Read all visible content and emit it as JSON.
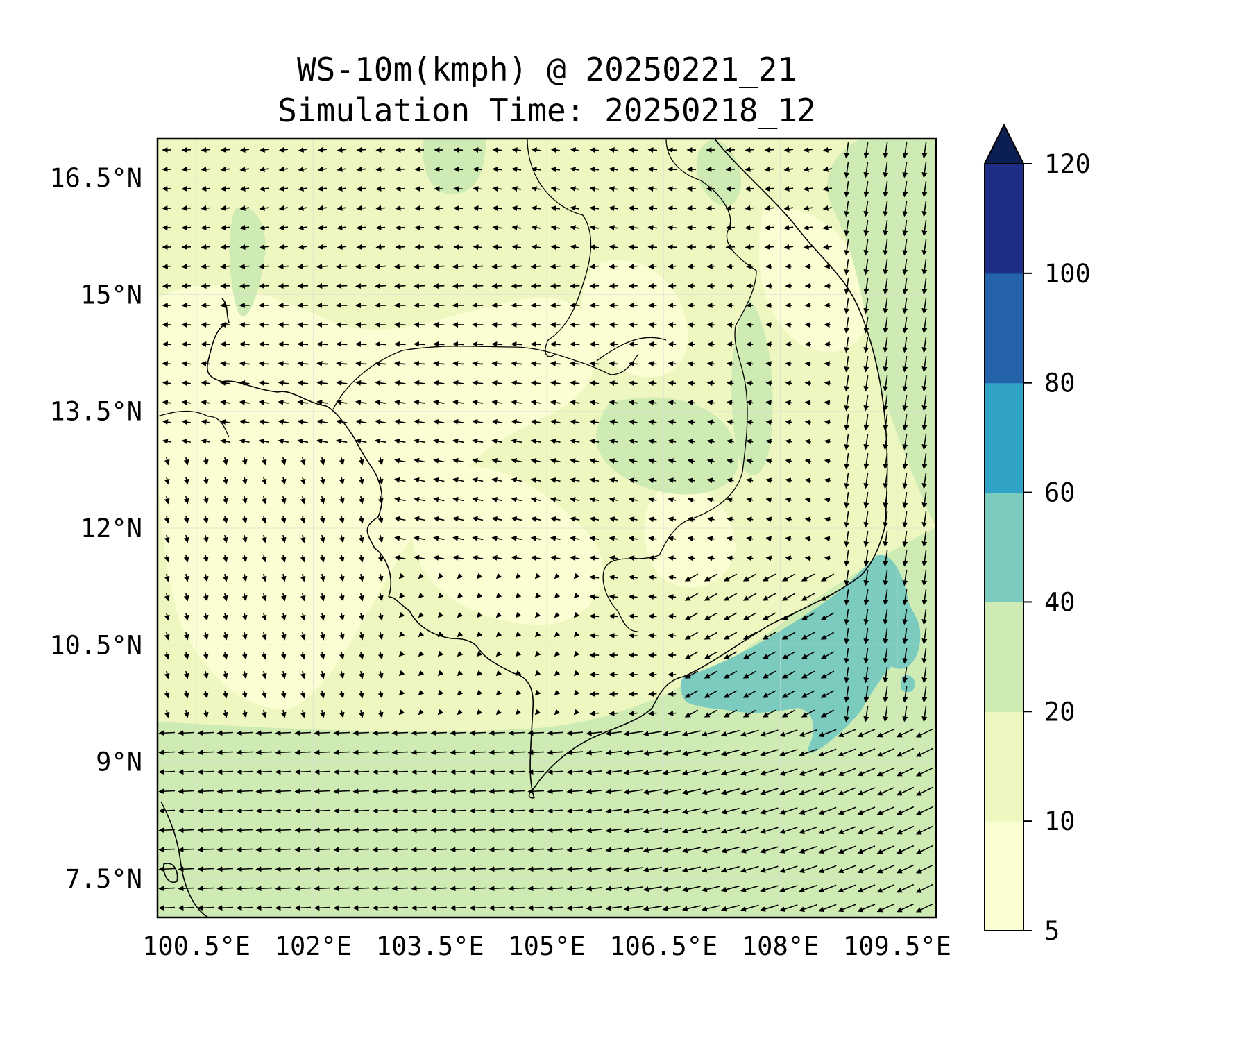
{
  "title_line1": "WS-10m(kmph) @ 20250221_21",
  "title_line2": "Simulation Time: 20250218_12",
  "map": {
    "lon_range": [
      100.0,
      110.0
    ],
    "lat_range": [
      7.0,
      17.0
    ],
    "lon_ticks": [
      {
        "value": 100.5,
        "label": "100.5°E"
      },
      {
        "value": 102.0,
        "label": "102°E"
      },
      {
        "value": 103.5,
        "label": "103.5°E"
      },
      {
        "value": 105.0,
        "label": "105°E"
      },
      {
        "value": 106.5,
        "label": "106.5°E"
      },
      {
        "value": 108.0,
        "label": "108°E"
      },
      {
        "value": 109.5,
        "label": "109.5°E"
      }
    ],
    "lat_ticks": [
      {
        "value": 16.5,
        "label": "16.5°N"
      },
      {
        "value": 15.0,
        "label": "15°N"
      },
      {
        "value": 13.5,
        "label": "13.5°N"
      },
      {
        "value": 12.0,
        "label": "12°N"
      },
      {
        "value": 10.5,
        "label": "10.5°N"
      },
      {
        "value": 9.0,
        "label": "9°N"
      },
      {
        "value": 7.5,
        "label": "7.5°N"
      }
    ],
    "gridlines": true
  },
  "colorbar": {
    "levels": [
      5,
      10,
      20,
      40,
      60,
      80,
      100,
      120
    ],
    "labels": [
      "5",
      "10",
      "20",
      "40",
      "60",
      "80",
      "100",
      "120"
    ],
    "colors": [
      "#fbfed3",
      "#eef7bf",
      "#cfebb4",
      "#7ccbbf",
      "#2fa2c6",
      "#2462a9",
      "#1f2d84"
    ],
    "extend_color": "#0b1f52",
    "extend": "max"
  }
}
